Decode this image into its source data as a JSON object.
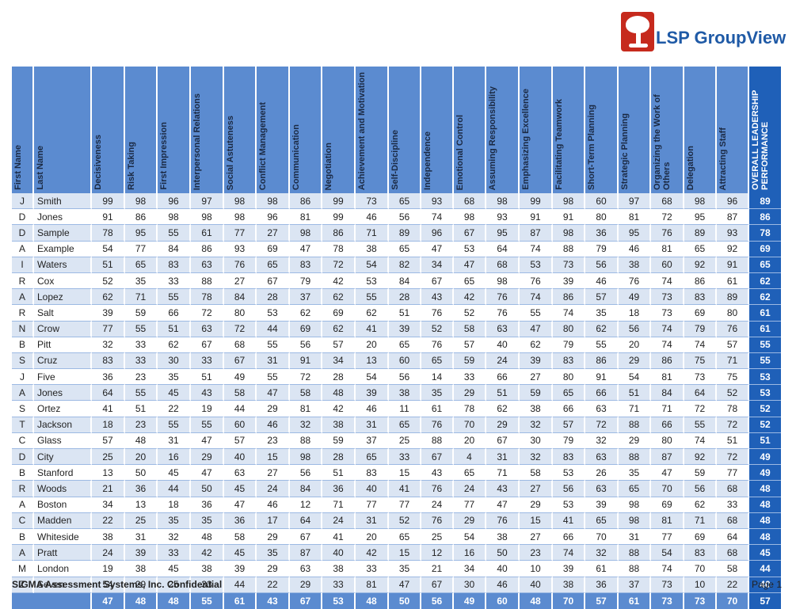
{
  "brand": {
    "name": "LSP GroupView"
  },
  "columns": [
    "First Name",
    "Last Name",
    "Decisiveness",
    "Risk Taking",
    "First Impression",
    "Interpersonal Relations",
    "Social Astuteness",
    "Conflict Management",
    "Communication",
    "Negotiation",
    "Achievement and Motivation",
    "Self-Discipline",
    "Independence",
    "Emotional Control",
    "Assuming Responsibility",
    "Emphasizing Excellence",
    "Facilitating Teamwork",
    "Short-Term Planning",
    "Strategic Planning",
    "Organizing the Work of Others",
    "Delegation",
    "Attracting Staff",
    "OVERALL LEADERSHIP PERFORMANCE"
  ],
  "rows": [
    [
      "J",
      "Smith",
      99,
      98,
      96,
      97,
      98,
      98,
      86,
      99,
      73,
      65,
      93,
      68,
      98,
      99,
      98,
      60,
      97,
      68,
      98,
      96,
      89
    ],
    [
      "D",
      "Jones",
      91,
      86,
      98,
      98,
      98,
      96,
      81,
      99,
      46,
      56,
      74,
      98,
      93,
      91,
      91,
      80,
      81,
      72,
      95,
      87,
      86
    ],
    [
      "D",
      "Sample",
      78,
      95,
      55,
      61,
      77,
      27,
      98,
      86,
      71,
      89,
      96,
      67,
      95,
      87,
      98,
      36,
      95,
      76,
      89,
      93,
      78
    ],
    [
      "A",
      "Example",
      54,
      77,
      84,
      86,
      93,
      69,
      47,
      78,
      38,
      65,
      47,
      53,
      64,
      74,
      88,
      79,
      46,
      81,
      65,
      92,
      69
    ],
    [
      "I",
      "Waters",
      51,
      65,
      83,
      63,
      76,
      65,
      83,
      72,
      54,
      82,
      34,
      47,
      68,
      53,
      73,
      56,
      38,
      60,
      92,
      91,
      65
    ],
    [
      "R",
      "Cox",
      52,
      35,
      33,
      88,
      27,
      67,
      79,
      42,
      53,
      84,
      67,
      65,
      98,
      76,
      39,
      46,
      76,
      74,
      86,
      61,
      62
    ],
    [
      "A",
      "Lopez",
      62,
      71,
      55,
      78,
      84,
      28,
      37,
      62,
      55,
      28,
      43,
      42,
      76,
      74,
      86,
      57,
      49,
      73,
      83,
      89,
      62
    ],
    [
      "R",
      "Salt",
      39,
      59,
      66,
      72,
      80,
      53,
      62,
      69,
      62,
      51,
      76,
      52,
      76,
      55,
      74,
      35,
      18,
      73,
      69,
      80,
      61
    ],
    [
      "N",
      "Crow",
      77,
      55,
      51,
      63,
      72,
      44,
      69,
      62,
      41,
      39,
      52,
      58,
      63,
      47,
      80,
      62,
      56,
      74,
      79,
      76,
      61
    ],
    [
      "B",
      "Pitt",
      32,
      33,
      62,
      67,
      68,
      55,
      56,
      57,
      20,
      65,
      76,
      57,
      40,
      62,
      79,
      55,
      20,
      74,
      74,
      57,
      55
    ],
    [
      "S",
      "Cruz",
      83,
      33,
      30,
      33,
      67,
      31,
      91,
      34,
      13,
      60,
      65,
      59,
      24,
      39,
      83,
      86,
      29,
      86,
      75,
      71,
      55
    ],
    [
      "J",
      "Five",
      36,
      23,
      35,
      51,
      49,
      55,
      72,
      28,
      54,
      56,
      14,
      33,
      66,
      27,
      80,
      91,
      54,
      81,
      73,
      75,
      53
    ],
    [
      "A",
      "Jones",
      64,
      55,
      45,
      43,
      58,
      47,
      58,
      48,
      39,
      38,
      35,
      29,
      51,
      59,
      65,
      66,
      51,
      84,
      64,
      52,
      53
    ],
    [
      "S",
      "Ortez",
      41,
      51,
      22,
      19,
      44,
      29,
      81,
      42,
      46,
      11,
      61,
      78,
      62,
      38,
      66,
      63,
      71,
      71,
      72,
      78,
      52
    ],
    [
      "T",
      "Jackson",
      18,
      23,
      55,
      55,
      60,
      46,
      32,
      38,
      31,
      65,
      76,
      70,
      29,
      32,
      57,
      72,
      88,
      66,
      55,
      72,
      52
    ],
    [
      "C",
      "Glass",
      57,
      48,
      31,
      47,
      57,
      23,
      88,
      59,
      37,
      25,
      88,
      20,
      67,
      30,
      79,
      32,
      29,
      80,
      74,
      51,
      51
    ],
    [
      "D",
      "City",
      25,
      20,
      16,
      29,
      40,
      15,
      98,
      28,
      65,
      33,
      67,
      4,
      31,
      32,
      83,
      63,
      88,
      87,
      92,
      72,
      49
    ],
    [
      "B",
      "Stanford",
      13,
      50,
      45,
      47,
      63,
      27,
      56,
      51,
      83,
      15,
      43,
      65,
      71,
      58,
      53,
      26,
      35,
      47,
      59,
      77,
      49
    ],
    [
      "R",
      "Woods",
      21,
      36,
      44,
      50,
      45,
      24,
      84,
      36,
      40,
      41,
      76,
      24,
      43,
      27,
      56,
      63,
      65,
      70,
      56,
      68,
      48
    ],
    [
      "A",
      "Boston",
      34,
      13,
      18,
      36,
      47,
      46,
      12,
      71,
      77,
      77,
      24,
      77,
      47,
      29,
      53,
      39,
      98,
      69,
      62,
      33,
      48
    ],
    [
      "C",
      "Madden",
      22,
      25,
      35,
      35,
      36,
      17,
      64,
      24,
      31,
      52,
      76,
      29,
      76,
      15,
      41,
      65,
      98,
      81,
      71,
      68,
      48
    ],
    [
      "B",
      "Whiteside",
      38,
      31,
      32,
      48,
      58,
      29,
      67,
      41,
      20,
      65,
      25,
      54,
      38,
      27,
      66,
      70,
      31,
      77,
      69,
      64,
      48
    ],
    [
      "A",
      "Pratt",
      24,
      39,
      33,
      42,
      45,
      35,
      87,
      40,
      42,
      15,
      12,
      16,
      50,
      23,
      74,
      32,
      88,
      54,
      83,
      68,
      45
    ],
    [
      "M",
      "London",
      19,
      38,
      45,
      38,
      39,
      29,
      63,
      38,
      33,
      35,
      21,
      34,
      40,
      10,
      39,
      61,
      88,
      74,
      70,
      58,
      44
    ],
    [
      "Z",
      "Seven",
      54,
      29,
      25,
      33,
      44,
      22,
      29,
      33,
      81,
      47,
      67,
      30,
      46,
      40,
      38,
      36,
      37,
      73,
      10,
      22,
      40
    ]
  ],
  "averages": [
    47,
    48,
    48,
    55,
    61,
    43,
    67,
    53,
    48,
    50,
    56,
    49,
    60,
    48,
    70,
    57,
    61,
    73,
    73,
    70,
    57
  ],
  "footer": {
    "left": "SIGMA Assessment Systems, Inc. Confidential",
    "right": "Page 1"
  }
}
